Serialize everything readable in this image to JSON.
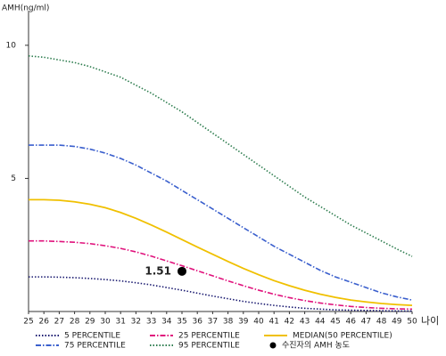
{
  "chart_data": {
    "type": "line",
    "y_label": "AMH(ng/ml)",
    "x_label": "나이",
    "x": [
      25,
      26,
      27,
      28,
      29,
      30,
      31,
      32,
      33,
      34,
      35,
      36,
      37,
      38,
      39,
      40,
      41,
      42,
      43,
      44,
      45,
      46,
      47,
      48,
      49,
      50
    ],
    "xlim": [
      25,
      50
    ],
    "xticks": [
      25,
      26,
      27,
      28,
      29,
      30,
      31,
      32,
      33,
      34,
      35,
      36,
      37,
      38,
      39,
      40,
      41,
      42,
      43,
      44,
      45,
      46,
      47,
      48,
      49,
      50
    ],
    "ylim": [
      0,
      11.3
    ],
    "yticks": [
      5,
      10
    ],
    "series": [
      {
        "name": "5 PERCENTILE",
        "color": "#1a1a70",
        "style": "dotted",
        "values": [
          1.3,
          1.3,
          1.29,
          1.27,
          1.24,
          1.2,
          1.15,
          1.08,
          1.0,
          0.9,
          0.8,
          0.69,
          0.58,
          0.48,
          0.38,
          0.3,
          0.23,
          0.17,
          0.12,
          0.09,
          0.06,
          0.05,
          0.04,
          0.03,
          0.02,
          0.02
        ]
      },
      {
        "name": "25 PERCENTILE",
        "color": "#e0127c",
        "style": "dashdot",
        "values": [
          2.65,
          2.65,
          2.63,
          2.6,
          2.55,
          2.47,
          2.37,
          2.24,
          2.08,
          1.9,
          1.72,
          1.53,
          1.34,
          1.15,
          0.97,
          0.8,
          0.65,
          0.52,
          0.41,
          0.32,
          0.25,
          0.19,
          0.15,
          0.12,
          0.1,
          0.09
        ]
      },
      {
        "name": "MEDIAN(50 PERCENTILE)",
        "color": "#f0c000",
        "style": "solid",
        "values": [
          4.2,
          4.2,
          4.18,
          4.12,
          4.03,
          3.9,
          3.72,
          3.5,
          3.25,
          2.98,
          2.7,
          2.42,
          2.15,
          1.88,
          1.62,
          1.38,
          1.16,
          0.97,
          0.8,
          0.65,
          0.53,
          0.43,
          0.36,
          0.3,
          0.26,
          0.23
        ]
      },
      {
        "name": "75 PERCENTILE",
        "color": "#3a5fcd",
        "style": "dashdot",
        "values": [
          6.25,
          6.25,
          6.25,
          6.2,
          6.1,
          5.95,
          5.75,
          5.5,
          5.2,
          4.9,
          4.55,
          4.2,
          3.85,
          3.5,
          3.15,
          2.8,
          2.45,
          2.15,
          1.85,
          1.55,
          1.3,
          1.1,
          0.9,
          0.7,
          0.55,
          0.43
        ]
      },
      {
        "name": "95 PERCENTILE",
        "color": "#2e7d4f",
        "style": "dotted",
        "values": [
          9.6,
          9.55,
          9.45,
          9.35,
          9.2,
          9.0,
          8.8,
          8.5,
          8.2,
          7.85,
          7.5,
          7.1,
          6.7,
          6.3,
          5.9,
          5.5,
          5.1,
          4.7,
          4.3,
          3.95,
          3.6,
          3.25,
          2.95,
          2.65,
          2.35,
          2.07
        ]
      }
    ],
    "point": {
      "name": "수진자의 AMH 농도",
      "x": 35,
      "value": 1.51,
      "color": "#000000"
    }
  }
}
